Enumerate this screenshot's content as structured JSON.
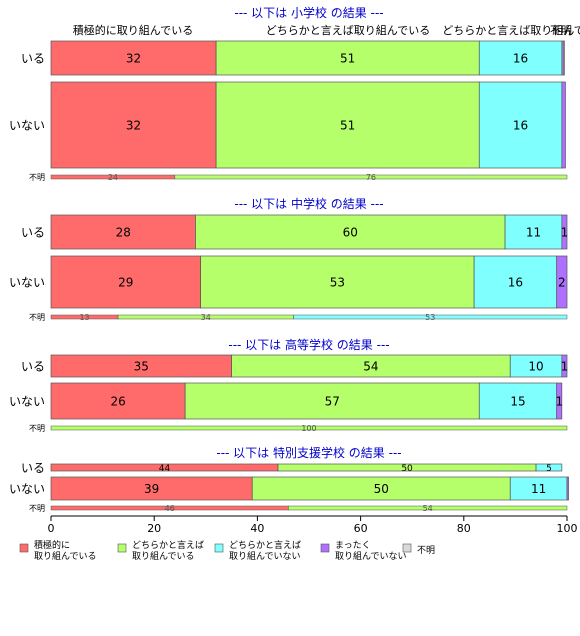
{
  "colors": {
    "title": "#0000cc",
    "seg": [
      "#ff6b6b",
      "#b5ff6b",
      "#80ffff",
      "#b070ff",
      "#d9d9d9"
    ],
    "stroke": "#555555"
  },
  "chart_data": {
    "type": "bar",
    "orientation": "horizontal-stacked-100",
    "xlim": [
      0,
      100
    ],
    "x_ticks": [
      "0",
      "20",
      "40",
      "60",
      "80",
      "100"
    ],
    "header_labels": [
      "積極的に取り組んでいる",
      "どちらかと言えば取り組んでいる",
      "どちらかと言えば取り組んでいない",
      "不明"
    ],
    "legend": [
      {
        "line1": "積極的に",
        "line2": "取り組んでいる"
      },
      {
        "line1": "どちらかと言えば",
        "line2": "取り組んでいる"
      },
      {
        "line1": "どちらかと言えば",
        "line2": "取り組んでいない"
      },
      {
        "line1": "まったく",
        "line2": "取り組んでいない"
      },
      {
        "line1": "不明",
        "line2": ""
      }
    ],
    "panels": [
      {
        "title": "--- 以下は 小学校 の結果 ---",
        "rows": [
          {
            "label": "いる",
            "values": [
              32,
              51,
              16,
              0.3,
              0.2
            ]
          },
          {
            "label": "いない",
            "values": [
              32,
              51,
              16,
              0.7,
              0
            ]
          },
          {
            "label": "不明",
            "values": [
              24,
              76,
              0,
              0,
              0
            ]
          }
        ]
      },
      {
        "title": "--- 以下は 中学校 の結果 ---",
        "rows": [
          {
            "label": "いる",
            "values": [
              28,
              60,
              11,
              1,
              0
            ]
          },
          {
            "label": "いない",
            "values": [
              29,
              53,
              16,
              2,
              0
            ]
          },
          {
            "label": "不明",
            "values": [
              13,
              34,
              53,
              0,
              0
            ]
          }
        ]
      },
      {
        "title": "--- 以下は 高等学校 の結果 ---",
        "rows": [
          {
            "label": "いる",
            "values": [
              35,
              54,
              10,
              1,
              0
            ]
          },
          {
            "label": "いない",
            "values": [
              26,
              57,
              15,
              1,
              0
            ]
          },
          {
            "label": "不明",
            "values": [
              0,
              100,
              0,
              0,
              0
            ]
          }
        ]
      },
      {
        "title": "--- 以下は 特別支援学校 の結果 ---",
        "rows": [
          {
            "label": "いる",
            "values": [
              44,
              50,
              5,
              0,
              0
            ]
          },
          {
            "label": "いない",
            "values": [
              39,
              50,
              11,
              0.3,
              0
            ]
          },
          {
            "label": "不明",
            "values": [
              46,
              54,
              0,
              0,
              0
            ]
          }
        ]
      }
    ]
  }
}
